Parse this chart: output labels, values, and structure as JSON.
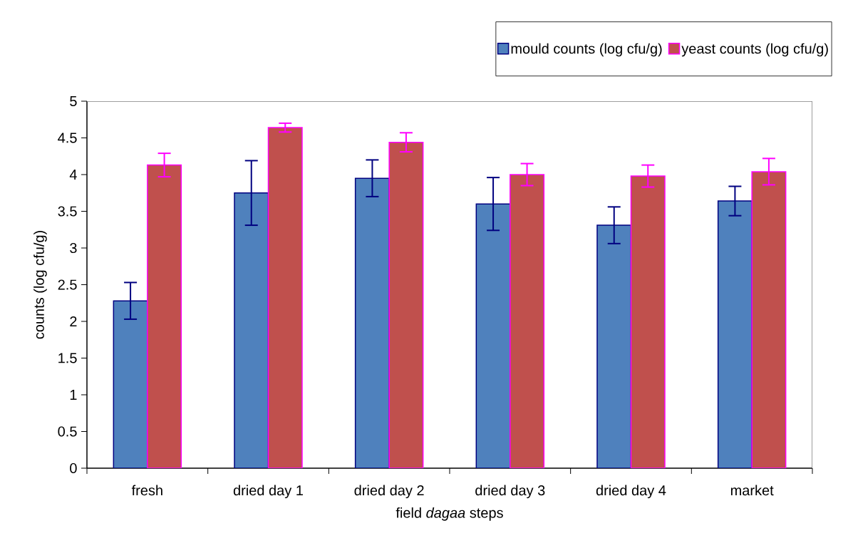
{
  "chart_data": {
    "type": "bar",
    "xlabel": "field *dagaa* steps",
    "ylabel": "counts (log cfu/g)",
    "categories": [
      "fresh",
      "dried day 1",
      "dried day 2",
      "dried day 3",
      "dried day 4",
      "market"
    ],
    "series": [
      {
        "name": "mould counts (log cfu/g)",
        "color": "#4f81bd",
        "values": [
          2.28,
          3.75,
          3.95,
          3.6,
          3.31,
          3.64
        ],
        "errors": [
          0.25,
          0.44,
          0.25,
          0.36,
          0.25,
          0.2
        ]
      },
      {
        "name": "yeast counts (log cfu/g)",
        "color": "#c0504d",
        "values": [
          4.13,
          4.64,
          4.44,
          4.0,
          3.98,
          4.04
        ],
        "errors": [
          0.16,
          0.06,
          0.13,
          0.15,
          0.15,
          0.18
        ]
      }
    ],
    "ylim": [
      0,
      5
    ],
    "yticks": [
      0,
      0.5,
      1,
      1.5,
      2,
      2.5,
      3,
      3.5,
      4,
      4.5,
      5
    ],
    "legend": "top right",
    "grid": false
  }
}
